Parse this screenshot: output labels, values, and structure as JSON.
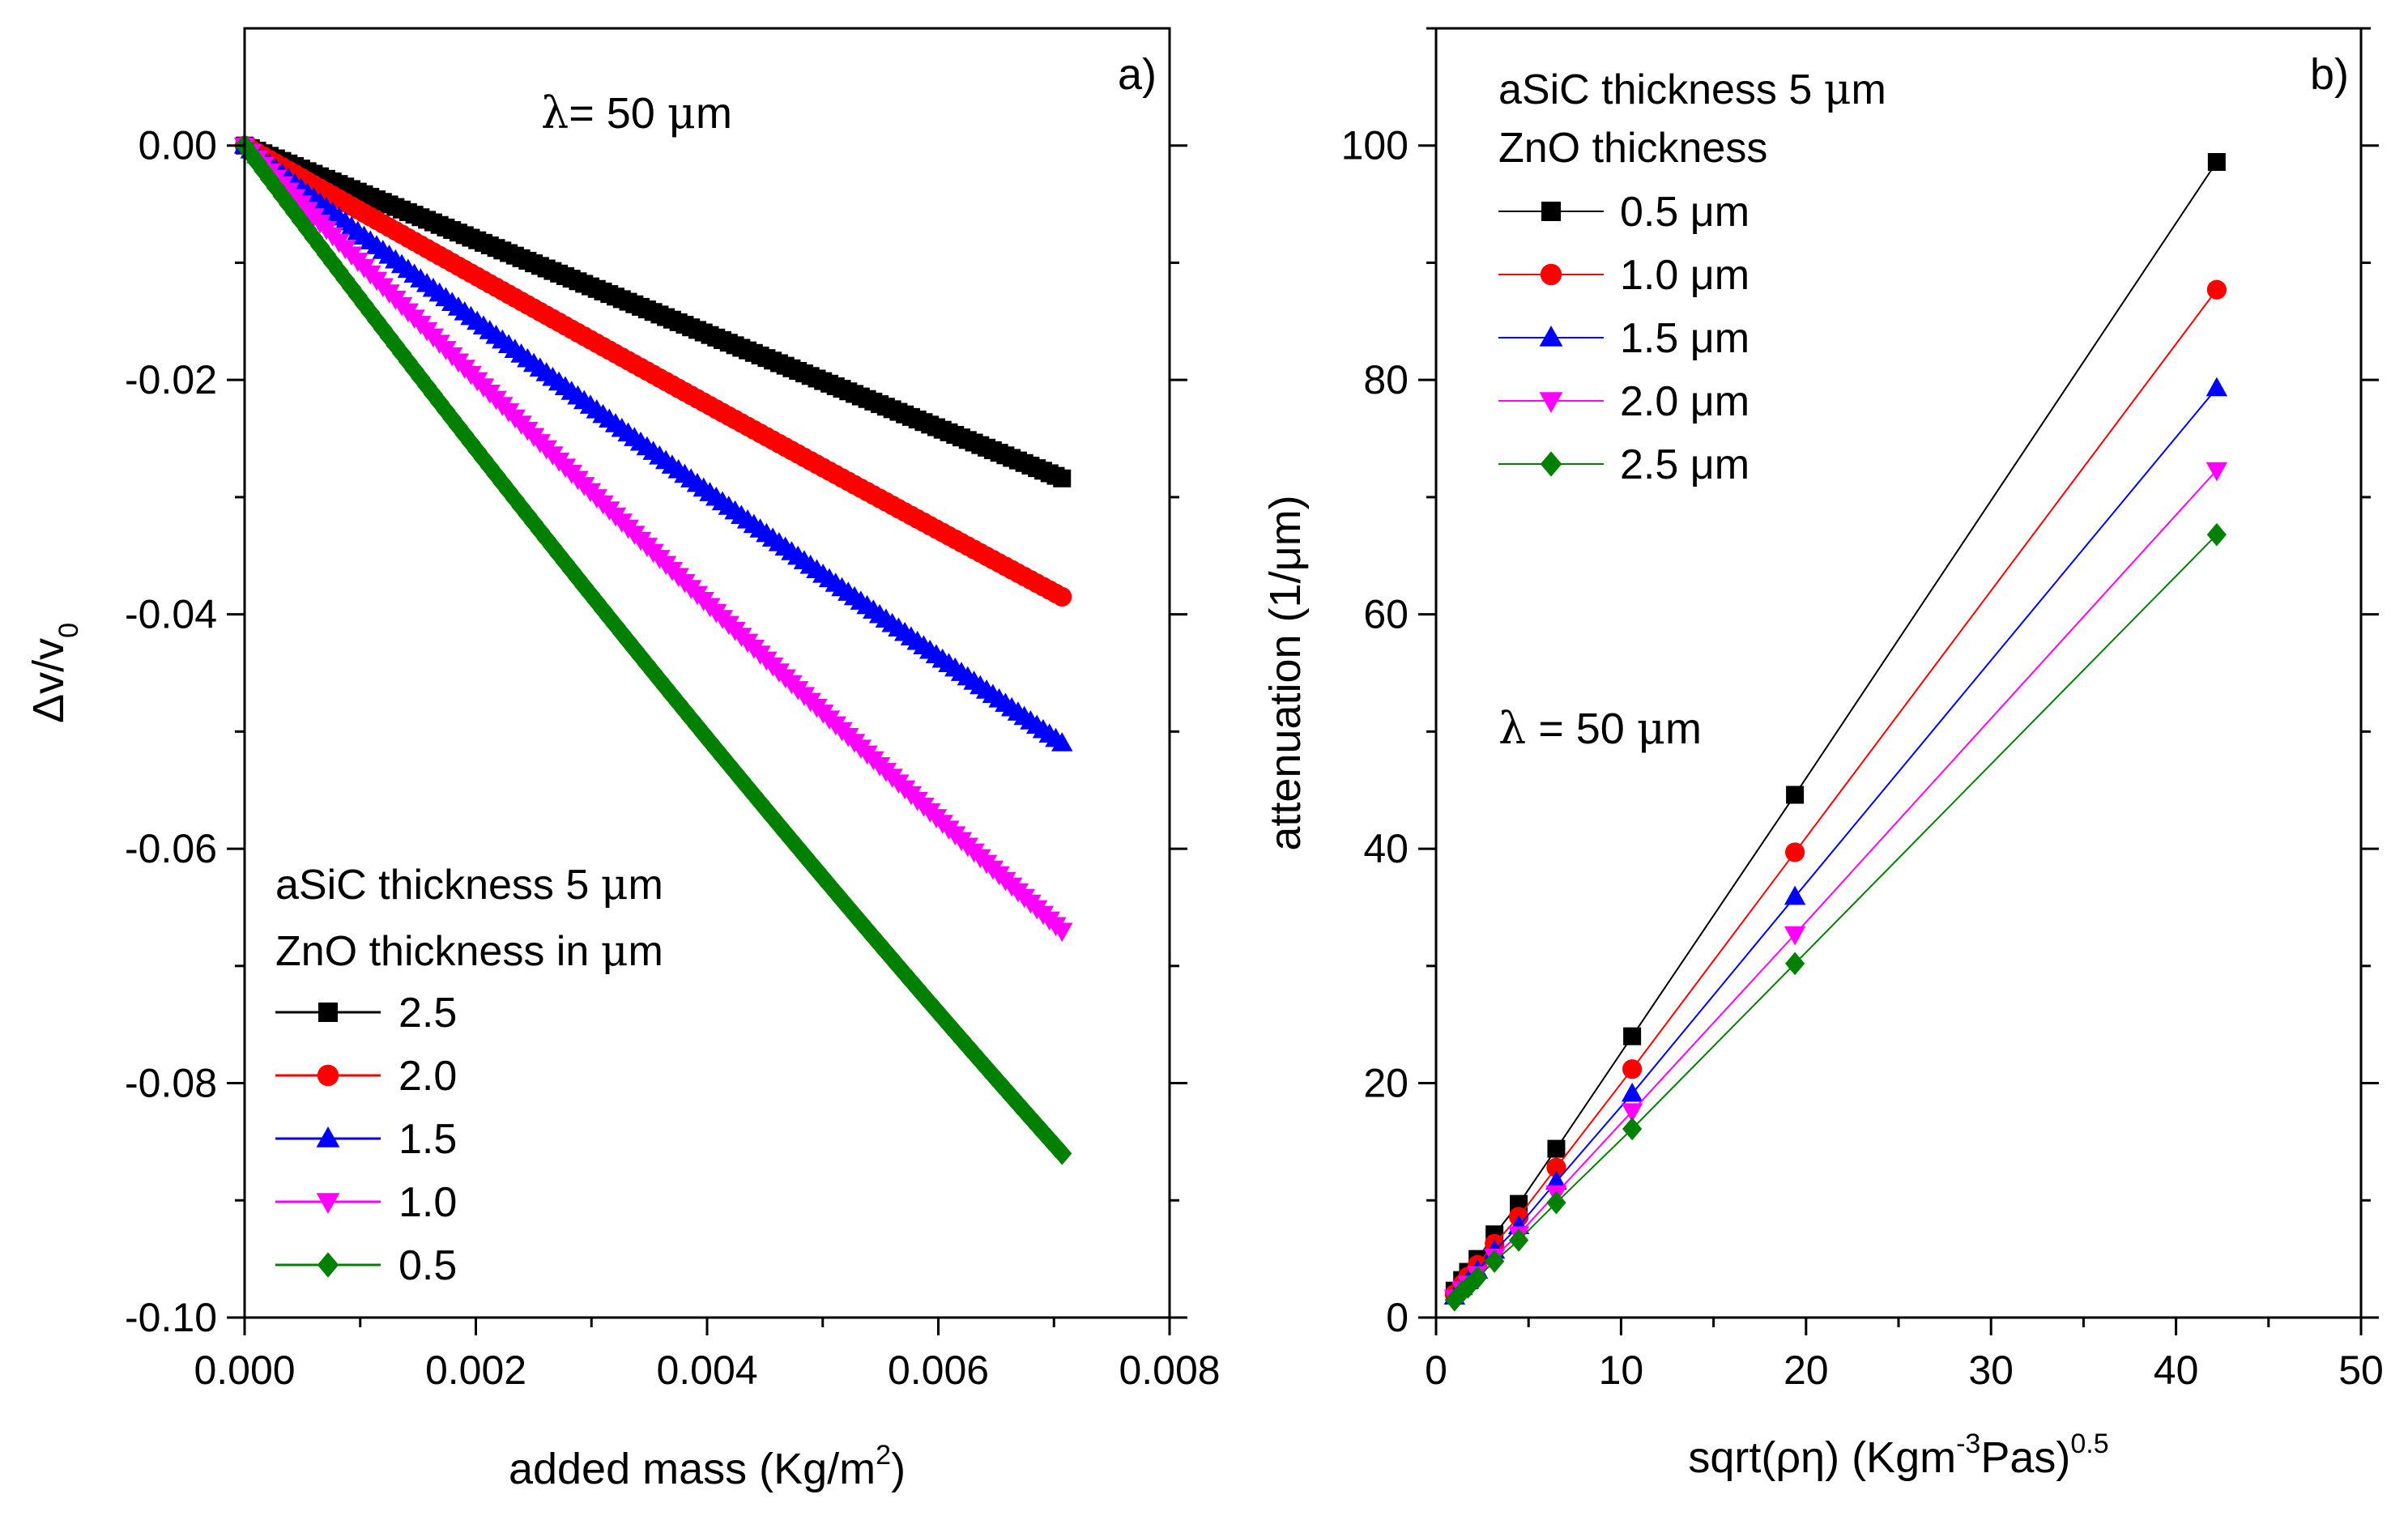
{
  "chart_data": [
    {
      "type": "scatter",
      "panel_label": "a)",
      "annotation": {
        "lambda_symbol": "λ",
        "lambda_text": "= 50 ",
        "mu": "μ",
        "unit": "m"
      },
      "xlabel": {
        "main": "added mass (Kg/m",
        "sup": "2",
        "tail": ")"
      },
      "ylabel": {
        "main": "Δv/v",
        "sub": "0"
      },
      "xlim": [
        0.0,
        0.008
      ],
      "ylim": [
        -0.1,
        0.01
      ],
      "xticks": [
        "0.000",
        "0.002",
        "0.004",
        "0.006",
        "0.008"
      ],
      "xtick_values": [
        0.0,
        0.002,
        0.004,
        0.006,
        0.008
      ],
      "yticks": [
        "0.00",
        "-0.02",
        "-0.04",
        "-0.06",
        "-0.08",
        "-0.10"
      ],
      "ytick_values": [
        0.0,
        -0.02,
        -0.04,
        -0.06,
        -0.08,
        -0.1
      ],
      "legend": {
        "line1_a": "aSiC thickness 5 ",
        "mu": "μ",
        "line1_b": "m",
        "line2_a": "ZnO thickness in ",
        "line2_b": "m"
      },
      "series": [
        {
          "name": "2.5",
          "color": "#000000",
          "marker": "square",
          "x_end": 0.00707,
          "y_end": -0.0284,
          "curvature": 0.0
        },
        {
          "name": "2.0",
          "color": "#ff0000",
          "marker": "circle",
          "x_end": 0.00707,
          "y_end": -0.0385,
          "curvature": 0.03
        },
        {
          "name": "1.5",
          "color": "#0000ff",
          "marker": "triangle-up",
          "x_end": 0.00707,
          "y_end": -0.051,
          "curvature": 0.05
        },
        {
          "name": "1.0",
          "color": "#ff00ff",
          "marker": "triangle-down",
          "x_end": 0.00707,
          "y_end": -0.067,
          "curvature": 0.07
        },
        {
          "name": "0.5",
          "color": "#008000",
          "marker": "diamond",
          "x_end": 0.00707,
          "y_end": -0.086,
          "curvature": 0.09
        }
      ]
    },
    {
      "type": "line",
      "panel_label": "b)",
      "annotation": {
        "lambda_symbol": "λ",
        "lambda_text": " = 50 ",
        "mu": "μ",
        "unit": "m"
      },
      "xlabel": {
        "main": "sqrt(ρη) (Kgm",
        "sup1": "-3",
        "mid": "Pas)",
        "sup2": "0.5"
      },
      "ylabel": "attenuation (1/μm)",
      "xlim": [
        0,
        50
      ],
      "ylim": [
        0,
        110
      ],
      "xticks": [
        "0",
        "10",
        "20",
        "30",
        "40",
        "50"
      ],
      "xtick_values": [
        0,
        10,
        20,
        30,
        40,
        50
      ],
      "yticks": [
        "0",
        "20",
        "40",
        "60",
        "80",
        "100"
      ],
      "ytick_values": [
        0,
        20,
        40,
        60,
        80,
        100
      ],
      "legend": {
        "line1_a": "aSiC thickness 5 ",
        "mu": "μ",
        "line1_b": "m",
        "line2": "ZnO thickness"
      },
      "x": [
        1.0,
        1.41,
        1.73,
        2.24,
        3.16,
        4.47,
        6.5,
        10.6,
        19.4,
        42.2
      ],
      "series": [
        {
          "name": "0.5 μm",
          "color": "#000000",
          "marker": "square",
          "values": [
            2.3,
            3.2,
            3.9,
            5.0,
            7.1,
            9.7,
            14.4,
            24.0,
            44.6,
            98.6
          ]
        },
        {
          "name": "1.0 μm",
          "color": "#ff0000",
          "marker": "circle",
          "values": [
            2.0,
            2.8,
            3.5,
            4.5,
            6.3,
            8.6,
            12.8,
            21.2,
            39.7,
            87.7
          ]
        },
        {
          "name": "1.5 μm",
          "color": "#0000ff",
          "marker": "triangle-up",
          "values": [
            1.8,
            2.6,
            3.1,
            4.0,
            5.7,
            7.8,
            11.6,
            19.1,
            35.9,
            79.3
          ]
        },
        {
          "name": "2.0 μm",
          "color": "#ff00ff",
          "marker": "triangle-down",
          "values": [
            1.7,
            2.4,
            2.9,
            3.7,
            5.2,
            7.1,
            10.6,
            17.6,
            32.7,
            72.3
          ]
        },
        {
          "name": "2.5 μm",
          "color": "#008000",
          "marker": "diamond",
          "values": [
            1.5,
            2.2,
            2.6,
            3.4,
            4.8,
            6.6,
            9.8,
            16.1,
            30.2,
            66.8
          ]
        }
      ]
    }
  ]
}
